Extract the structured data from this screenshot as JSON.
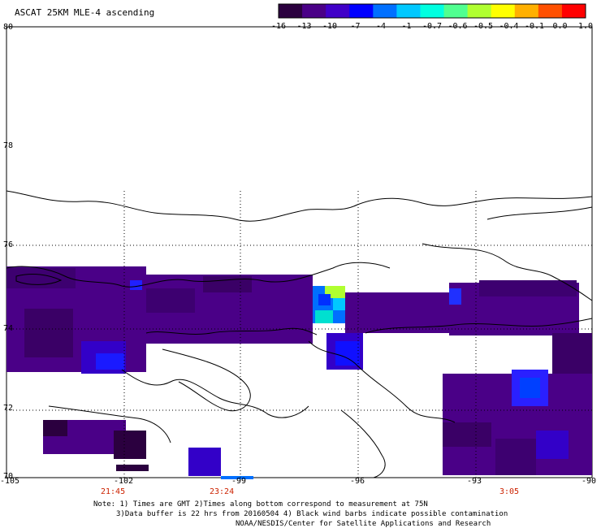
{
  "title": "ASCAT 25KM MLE-4 ascending",
  "colorbar": {
    "labels": [
      "-16",
      "-13",
      "-10",
      "-7",
      "-4",
      "-1",
      "-0.7",
      "-0.6",
      "-0.5",
      "-0.4",
      "-0.1",
      "0.0",
      "1.0"
    ],
    "colors": [
      "#2b003f",
      "#4a0087",
      "#4000c8",
      "#0000ff",
      "#0070ff",
      "#00c8ff",
      "#00ffe0",
      "#50ff90",
      "#b0ff30",
      "#ffff00",
      "#ffb000",
      "#ff5000",
      "#ff0000"
    ]
  },
  "latitudes": [
    "80",
    "78",
    "76",
    "74",
    "72",
    "70"
  ],
  "longitudes": [
    "-105",
    "-102",
    "-99",
    "-96",
    "-93",
    "-90"
  ],
  "times": [
    "21:45",
    "23:24",
    "3:05"
  ],
  "time_color": "#cc2200",
  "notes": [
    "Note: 1) Times are GMT 2)Times along bottom correspond to measurement at 75N",
    "3)Data buffer is 22 hrs from 20160504 4) Black wind barbs indicate possible contamination",
    "NOAA/NESDIS/Center for Satellite Applications and Research"
  ]
}
